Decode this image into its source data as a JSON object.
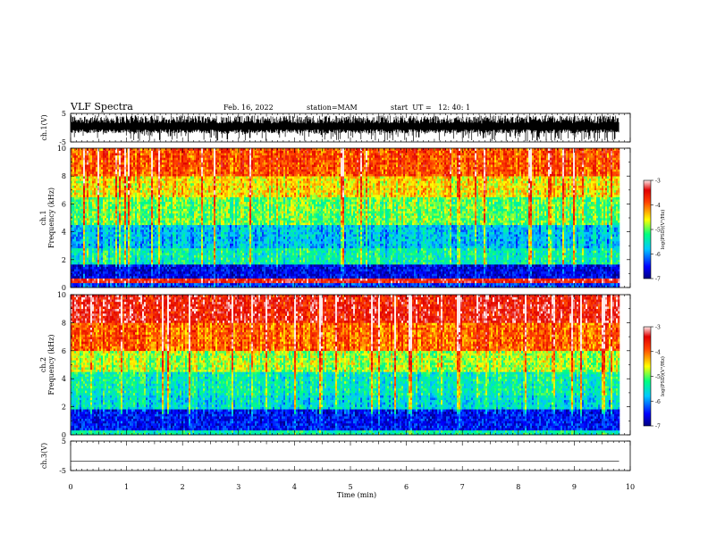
{
  "header": {
    "title": "VLF Spectra",
    "date": "Feb. 16, 2022",
    "station": "station=MAM",
    "start": "start  UT =   12: 40: 1"
  },
  "chart_data": {
    "type": "heatmap",
    "title": "VLF Spectra",
    "xlabel": "Time (min)",
    "xlim": [
      0,
      10
    ],
    "x_ticks": [
      "0",
      "1",
      "2",
      "3",
      "4",
      "5",
      "6",
      "7",
      "8",
      "9",
      "10"
    ],
    "data_end_min": 9.8,
    "panels": [
      {
        "id": "ch1-waveform",
        "kind": "waveform",
        "ylabel": "ch.1(V)",
        "ylim": [
          -5,
          5
        ],
        "y_ticks": [
          "5",
          "-5"
        ],
        "description_level": "dense noise centered near 0 V with negative spikes",
        "colors": {
          "trace": "#000000"
        }
      },
      {
        "id": "ch1-spectrogram",
        "kind": "spectrogram",
        "ylabel": "ch.1\nFrequency (kHz)",
        "ylim": [
          0,
          10
        ],
        "y_ticks": [
          "0",
          "2",
          "4",
          "6",
          "8",
          "10"
        ],
        "colorbar": {
          "label": "log(PSD)(V²/Hz)",
          "range": [
            -7,
            -3
          ],
          "ticks": [
            "-3",
            "-4",
            "-5",
            "-6",
            "-7"
          ]
        },
        "bands_khz": [
          {
            "from": 0,
            "to": 0.3,
            "level": -6.3
          },
          {
            "from": 0.3,
            "to": 0.6,
            "level": -3.5
          },
          {
            "from": 0.6,
            "to": 1.6,
            "level": -6.6
          },
          {
            "from": 1.6,
            "to": 2.9,
            "level": -5.4
          },
          {
            "from": 2.9,
            "to": 4.5,
            "level": -5.8
          },
          {
            "from": 4.5,
            "to": 6.5,
            "level": -5.0
          },
          {
            "from": 6.5,
            "to": 8.0,
            "level": -4.5
          },
          {
            "from": 8.0,
            "to": 10.0,
            "level": -3.9
          }
        ]
      },
      {
        "id": "ch2-spectrogram",
        "kind": "spectrogram",
        "ylabel": "ch.2\nFrequency (kHz)",
        "ylim": [
          0,
          10
        ],
        "y_ticks": [
          "0",
          "2",
          "4",
          "6",
          "8",
          "10"
        ],
        "colorbar": {
          "label": "log(PSD)(V²/Hz)",
          "range": [
            -7,
            -3
          ],
          "ticks": [
            "-3",
            "-4",
            "-5",
            "-6",
            "-7"
          ]
        },
        "bands_khz": [
          {
            "from": 0,
            "to": 0.4,
            "level": -5.4
          },
          {
            "from": 0.4,
            "to": 1.9,
            "level": -6.5
          },
          {
            "from": 1.9,
            "to": 2.9,
            "level": -5.6
          },
          {
            "from": 2.9,
            "to": 4.5,
            "level": -5.4
          },
          {
            "from": 4.5,
            "to": 6.0,
            "level": -4.8
          },
          {
            "from": 6.0,
            "to": 8.0,
            "level": -4.0
          },
          {
            "from": 8.0,
            "to": 10.0,
            "level": -3.5
          }
        ]
      },
      {
        "id": "ch3-waveform",
        "kind": "waveform",
        "ylabel": "ch.3(V)",
        "ylim": [
          -5,
          5
        ],
        "y_ticks": [
          "5",
          "-5"
        ],
        "level_volts": -1.8,
        "colors": {
          "trace": "#000000"
        }
      }
    ]
  }
}
